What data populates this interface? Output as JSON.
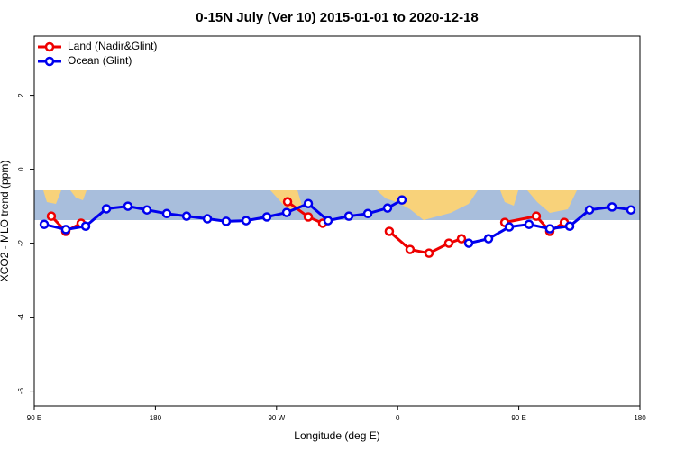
{
  "chart_data": {
    "type": "line",
    "title": "0-15N July (Ver 10)   2015-01-01 to 2020-12-18",
    "x_label": "Longitude (deg E)",
    "y_label": "XCO2 - MLO trend (ppm)",
    "xlim": [
      90,
      540
    ],
    "ylim": [
      -6.4,
      3.6
    ],
    "xticks": [
      {
        "value": 90,
        "label": "90 E"
      },
      {
        "value": 180,
        "label": "180"
      },
      {
        "value": 270,
        "label": "90 W"
      },
      {
        "value": 360,
        "label": "0"
      },
      {
        "value": 450,
        "label": "90 E"
      },
      {
        "value": 540,
        "label": "180"
      }
    ],
    "yticks": [
      -6,
      -4,
      -2,
      0,
      2
    ],
    "legend": "top-left",
    "series": [
      {
        "name": "Land (Nadir&Glint)",
        "color": "#ee0000",
        "x": [
          102.7,
          113.4,
          124.8,
          null,
          278.2,
          293.6,
          304.3,
          null,
          353.8,
          369.2,
          383.3,
          398.0,
          407.4,
          null,
          439.6,
          463.0,
          473.0,
          483.8
        ],
        "values": [
          -1.27,
          -1.68,
          -1.46,
          null,
          -0.88,
          -1.29,
          -1.46,
          null,
          -1.68,
          -2.17,
          -2.27,
          -2.0,
          -1.88,
          null,
          -1.44,
          -1.27,
          -1.68,
          -1.44
        ]
      },
      {
        "name": "Ocean (Glint)",
        "color": "#0000ee",
        "x": [
          97.4,
          113.4,
          128.2,
          143.6,
          159.6,
          173.7,
          188.4,
          203.2,
          218.6,
          232.6,
          247.4,
          262.8,
          277.5,
          293.6,
          308.3,
          323.7,
          337.8,
          352.5,
          363.2,
          null,
          412.8,
          427.5,
          442.9,
          457.6,
          473.0,
          487.8,
          502.5,
          519.3,
          533.3
        ],
        "values": [
          -1.49,
          -1.63,
          -1.54,
          -1.07,
          -1.0,
          -1.1,
          -1.2,
          -1.27,
          -1.34,
          -1.41,
          -1.39,
          -1.29,
          -1.17,
          -0.93,
          -1.39,
          -1.27,
          -1.2,
          -1.05,
          -0.83,
          null,
          -2.0,
          -1.88,
          -1.56,
          -1.49,
          -1.61,
          -1.54,
          -1.1,
          -1.02,
          -1.1
        ]
      }
    ]
  }
}
